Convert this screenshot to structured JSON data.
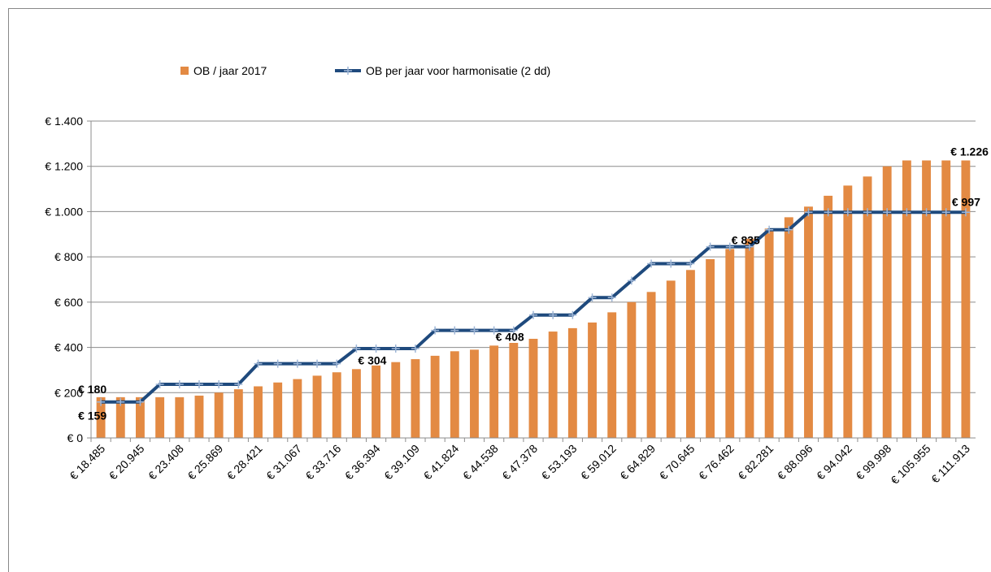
{
  "chart_data": {
    "type": "combo",
    "categories": [
      "€ 18.485",
      null,
      "€ 20.945",
      null,
      "€ 23.408",
      null,
      "€ 25.869",
      null,
      "€ 28.421",
      null,
      "€ 31.067",
      null,
      "€ 33.716",
      null,
      "€ 36.394",
      null,
      "€ 39.109",
      null,
      "€ 41.824",
      null,
      "€ 44.538",
      null,
      "€ 47.378",
      null,
      "€ 53.193",
      null,
      "€ 59.012",
      null,
      "€ 64.829",
      null,
      "€ 70.645",
      null,
      "€ 76.462",
      null,
      "€ 82.281",
      null,
      "€ 88.096",
      null,
      "€ 94.042",
      null,
      "€ 99.998",
      null,
      "€ 105.955",
      null,
      "€ 111.913"
    ],
    "series": [
      {
        "name": "OB / jaar 2017",
        "type": "bar",
        "color": "#e38a43",
        "values": [
          180,
          180,
          180,
          180,
          180,
          187,
          200,
          215,
          228,
          245,
          260,
          275,
          290,
          304,
          320,
          335,
          348,
          363,
          383,
          390,
          408,
          420,
          438,
          470,
          485,
          510,
          555,
          600,
          645,
          695,
          742,
          790,
          835,
          880,
          925,
          975,
          1022,
          1070,
          1115,
          1155,
          1200,
          1226,
          1226,
          1226,
          1226
        ],
        "value_labels": [
          "€ 180",
          null,
          null,
          null,
          null,
          null,
          null,
          null,
          null,
          null,
          null,
          null,
          null,
          "€ 304",
          null,
          null,
          null,
          null,
          null,
          null,
          "€ 408",
          null,
          null,
          null,
          null,
          null,
          null,
          null,
          null,
          null,
          null,
          null,
          "€ 835",
          null,
          null,
          null,
          null,
          null,
          null,
          null,
          null,
          null,
          null,
          null,
          "€ 1.226"
        ]
      },
      {
        "name": "OB per jaar voor harmonisatie (2 dd)",
        "type": "line",
        "color": "#1f4a7d",
        "marker_color": "#9db5d6",
        "values": [
          159,
          159,
          159,
          237,
          237,
          237,
          237,
          237,
          328,
          328,
          328,
          328,
          328,
          395,
          395,
          395,
          395,
          475,
          475,
          475,
          475,
          475,
          543,
          543,
          543,
          620,
          620,
          695,
          770,
          770,
          770,
          845,
          845,
          845,
          920,
          920,
          997,
          997,
          997,
          997,
          997,
          997,
          997,
          997,
          997
        ],
        "value_labels": [
          "€ 159",
          null,
          null,
          null,
          null,
          null,
          null,
          null,
          null,
          null,
          null,
          null,
          null,
          null,
          null,
          null,
          null,
          null,
          null,
          null,
          null,
          null,
          null,
          null,
          null,
          null,
          null,
          null,
          null,
          null,
          null,
          null,
          null,
          null,
          null,
          null,
          null,
          null,
          null,
          null,
          null,
          null,
          null,
          null,
          "€ 997"
        ]
      }
    ],
    "ylim": [
      0,
      1400
    ],
    "yticks": [
      {
        "value": 0,
        "label": "€ 0"
      },
      {
        "value": 200,
        "label": "€ 200"
      },
      {
        "value": 400,
        "label": "€ 400"
      },
      {
        "value": 600,
        "label": "€ 600"
      },
      {
        "value": 800,
        "label": "€ 800"
      },
      {
        "value": 1000,
        "label": "€ 1.000"
      },
      {
        "value": 1200,
        "label": "€ 1.200"
      },
      {
        "value": 1400,
        "label": "€ 1.400"
      }
    ],
    "grid": true,
    "legend": "top"
  }
}
